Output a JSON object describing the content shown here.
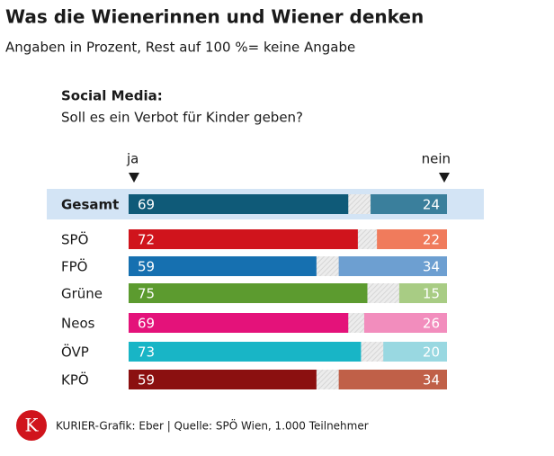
{
  "chart_data": {
    "type": "diverging_bar",
    "title": "Was die Wienerinnen und Wiener denken",
    "subtitle": "Angaben in Prozent, Rest auf 100 %= keine Angabe",
    "question_heading": "Social Media:",
    "question": "Soll es ein Verbot für Kinder geben?",
    "categories": [
      "Gesamt",
      "SPÖ",
      "FPÖ",
      "Grüne",
      "Neos",
      "ÖVP",
      "KPÖ"
    ],
    "highlight": 0,
    "xlim": [
      0,
      100
    ],
    "series": [
      {
        "name": "ja",
        "values": [
          69,
          72,
          59,
          75,
          69,
          73,
          59
        ],
        "colors": [
          "#0f5a78",
          "#d0141c",
          "#1670b0",
          "#5c9b2f",
          "#e4127a",
          "#18b5c6",
          "#8b1010"
        ]
      },
      {
        "name": "nein",
        "values": [
          24,
          22,
          34,
          15,
          26,
          20,
          34
        ],
        "colors": [
          "#3a7f9c",
          "#f07b5c",
          "#6d9fd1",
          "#a8cc84",
          "#f28dbd",
          "#99d8e1",
          "#c06048"
        ]
      }
    ],
    "logo": "K",
    "source": "KURIER-Grafik: Eber | Quelle: SPÖ Wien, 1.000 Teilnehmer"
  }
}
